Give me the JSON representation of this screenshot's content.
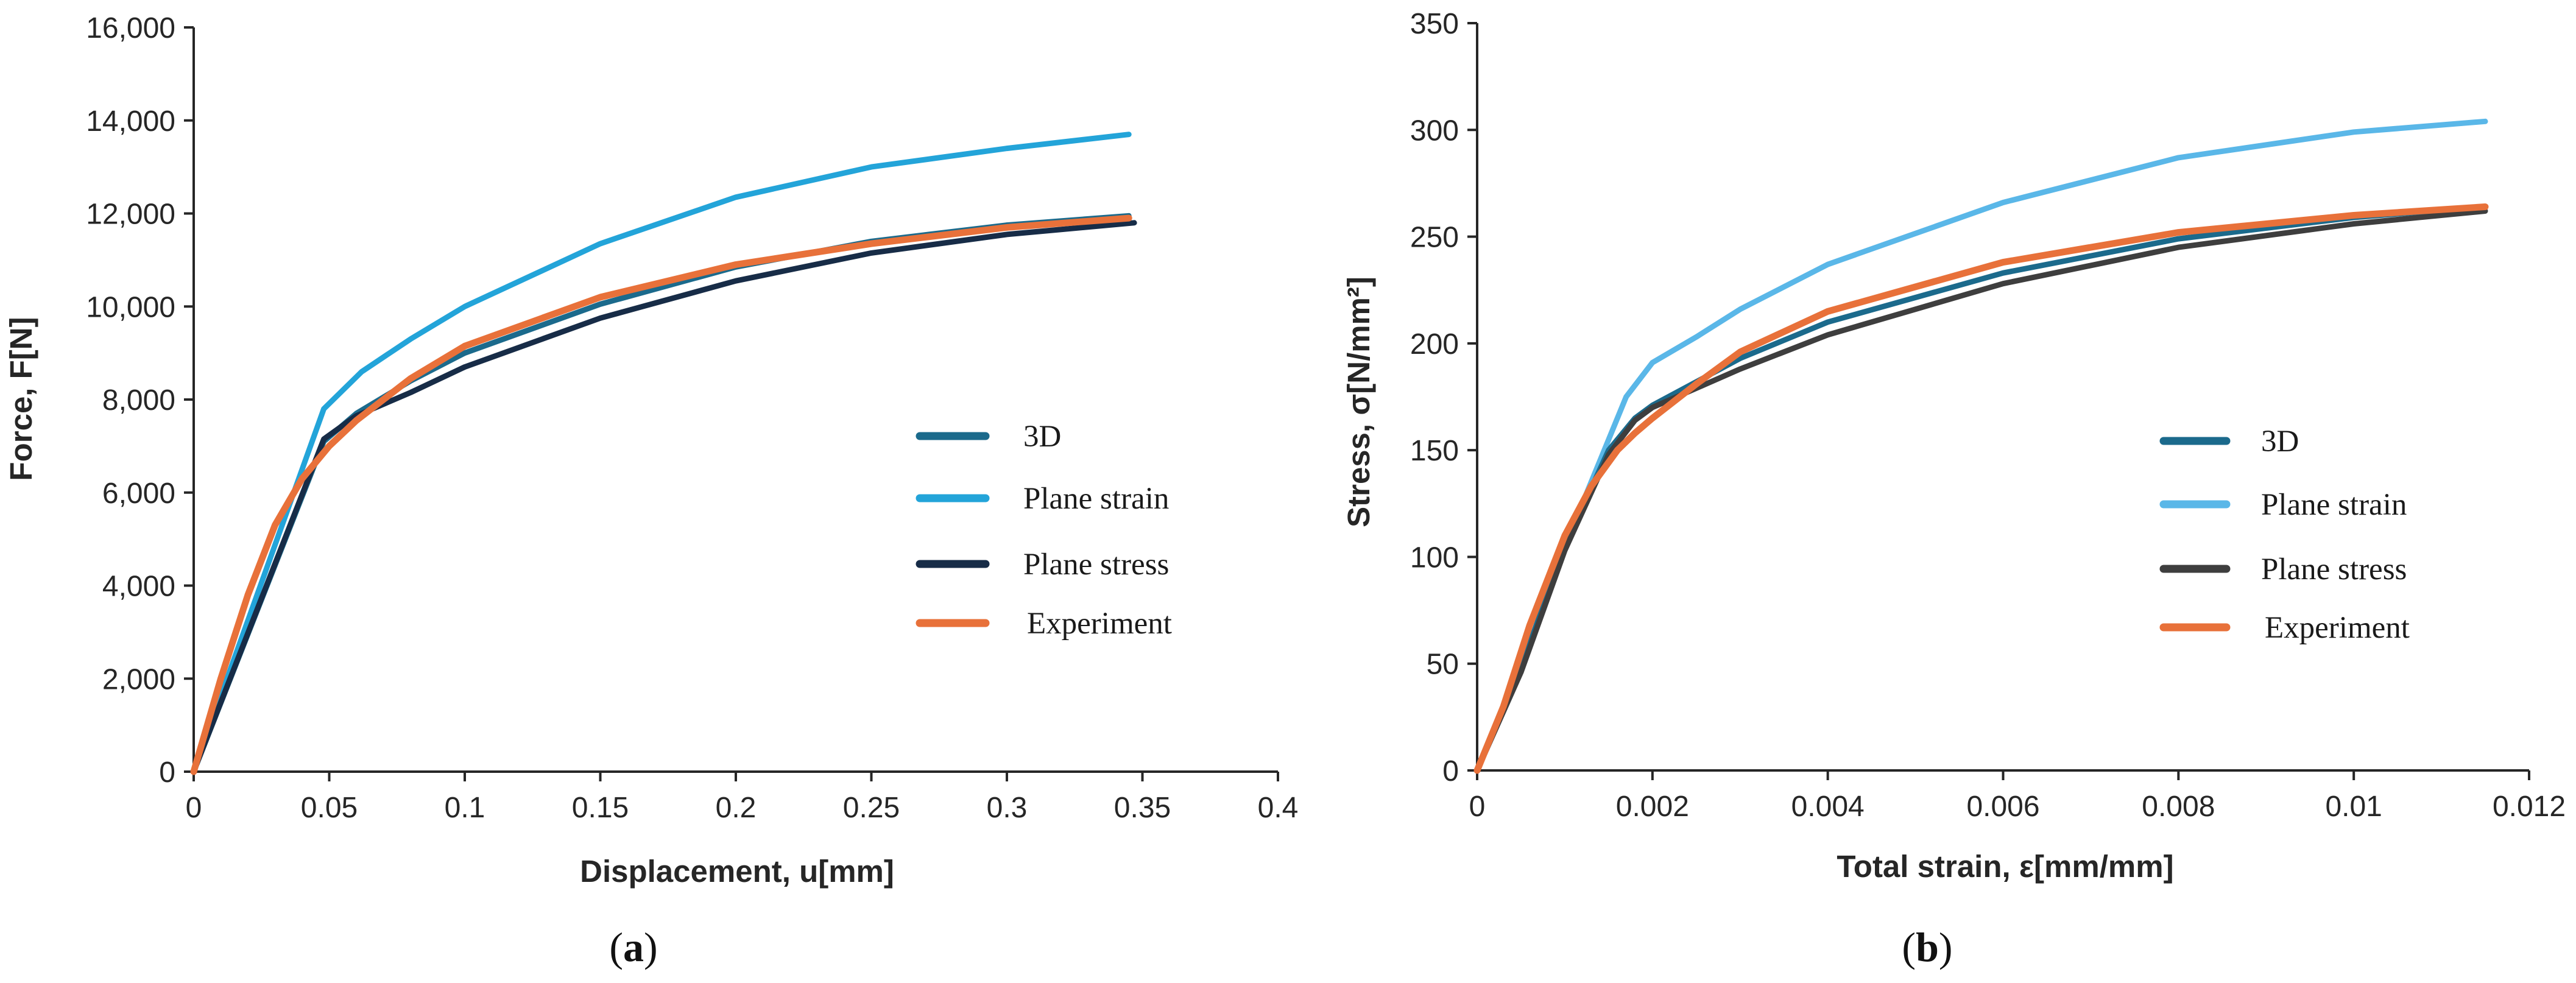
{
  "colors": {
    "3D": "#1b6a8c",
    "Plane strain": "#23a4d9",
    "Plane stress": "#172c47",
    "Experiment": "#e8713a",
    "Plane strain (b)": "#5ab7e8",
    "Plane stress (b)": "#3e3e3e"
  },
  "chart_data": [
    {
      "type": "line",
      "panel_label_open": "(",
      "panel_label": "a",
      "panel_label_close": ")",
      "title": "",
      "xlabel": "Displacement, u[mm]",
      "ylabel": "Force, F[N]",
      "xlim": [
        0,
        0.4
      ],
      "ylim": [
        0,
        16000
      ],
      "xticks": [
        0,
        0.05,
        0.1,
        0.15,
        0.2,
        0.25,
        0.3,
        0.35,
        0.4
      ],
      "xtick_labels": [
        "0",
        "0.05",
        "0.1",
        "0.15",
        "0.2",
        "0.25",
        "0.3",
        "0.35",
        "0.4"
      ],
      "yticks": [
        0,
        2000,
        4000,
        6000,
        8000,
        10000,
        12000,
        14000,
        16000
      ],
      "ytick_labels": [
        "0",
        "2,000",
        "4,000",
        "6,000",
        "8,000",
        "10,000",
        "12,000",
        "14,000",
        "16,000"
      ],
      "grid": false,
      "legend": "center-right",
      "series": [
        {
          "name": "3D",
          "color_key": "3D",
          "x": [
            0,
            0.048,
            0.06,
            0.08,
            0.1,
            0.15,
            0.2,
            0.25,
            0.3,
            0.345
          ],
          "y": [
            0,
            7100,
            7700,
            8400,
            9000,
            10050,
            10850,
            11400,
            11750,
            11950
          ]
        },
        {
          "name": "Plane strain",
          "color_key": "Plane strain",
          "x": [
            0,
            0.048,
            0.062,
            0.08,
            0.1,
            0.15,
            0.2,
            0.25,
            0.3,
            0.345
          ],
          "y": [
            0,
            7800,
            8600,
            9300,
            10000,
            11350,
            12350,
            13000,
            13400,
            13700
          ]
        },
        {
          "name": "Plane stress",
          "color_key": "Plane stress",
          "x": [
            0,
            0.048,
            0.06,
            0.08,
            0.1,
            0.15,
            0.2,
            0.25,
            0.3,
            0.347
          ],
          "y": [
            0,
            7150,
            7650,
            8150,
            8700,
            9750,
            10550,
            11150,
            11550,
            11800
          ]
        },
        {
          "name": "Experiment",
          "color_key": "Experiment",
          "x": [
            0,
            0.01,
            0.02,
            0.03,
            0.04,
            0.05,
            0.06,
            0.08,
            0.1,
            0.15,
            0.2,
            0.25,
            0.3,
            0.345
          ],
          "y": [
            0,
            2000,
            3800,
            5300,
            6300,
            7000,
            7550,
            8450,
            9150,
            10200,
            10900,
            11350,
            11700,
            11900
          ]
        }
      ]
    },
    {
      "type": "line",
      "panel_label_open": "(",
      "panel_label": "b",
      "panel_label_close": ")",
      "title": "",
      "xlabel": "Total strain, ε[mm/mm]",
      "ylabel": "Stress, σ[N/mm²]",
      "xlim": [
        0,
        0.012
      ],
      "ylim": [
        0,
        350
      ],
      "xticks": [
        0,
        0.002,
        0.004,
        0.006,
        0.008,
        0.01,
        0.012
      ],
      "xtick_labels": [
        "0",
        "0.002",
        "0.004",
        "0.006",
        "0.008",
        "0.01",
        "0.012"
      ],
      "yticks": [
        0,
        50,
        100,
        150,
        200,
        250,
        300,
        350
      ],
      "ytick_labels": [
        "0",
        "50",
        "100",
        "150",
        "200",
        "250",
        "300",
        "350"
      ],
      "grid": false,
      "legend": "center-right",
      "series": [
        {
          "name": "3D",
          "color_key": "3D",
          "x": [
            0,
            0.0005,
            0.001,
            0.0015,
            0.0018,
            0.002,
            0.003,
            0.004,
            0.006,
            0.008,
            0.01,
            0.0115
          ],
          "y": [
            0,
            48,
            105,
            150,
            165,
            171,
            193,
            210,
            233,
            249,
            259,
            264
          ]
        },
        {
          "name": "Plane strain",
          "color_key": "Plane strain (b)",
          "x": [
            0,
            0.0005,
            0.001,
            0.0014,
            0.0017,
            0.002,
            0.0025,
            0.003,
            0.004,
            0.006,
            0.008,
            0.01,
            0.0115
          ],
          "y": [
            0,
            48,
            105,
            145,
            175,
            191,
            203,
            216,
            237,
            266,
            287,
            299,
            304
          ]
        },
        {
          "name": "Plane stress",
          "color_key": "Plane stress (b)",
          "x": [
            0,
            0.0005,
            0.001,
            0.0015,
            0.0018,
            0.002,
            0.003,
            0.004,
            0.006,
            0.008,
            0.01,
            0.0115
          ],
          "y": [
            0,
            46,
            103,
            148,
            164,
            170,
            188,
            204,
            228,
            245,
            256,
            262
          ]
        },
        {
          "name": "Experiment",
          "color_key": "Experiment",
          "x": [
            0,
            0.0003,
            0.0006,
            0.001,
            0.0013,
            0.0016,
            0.0018,
            0.002,
            0.0025,
            0.003,
            0.004,
            0.006,
            0.008,
            0.01,
            0.0115
          ],
          "y": [
            0,
            30,
            68,
            110,
            133,
            150,
            158,
            165,
            181,
            196,
            215,
            238,
            252,
            260,
            264
          ]
        }
      ]
    }
  ]
}
